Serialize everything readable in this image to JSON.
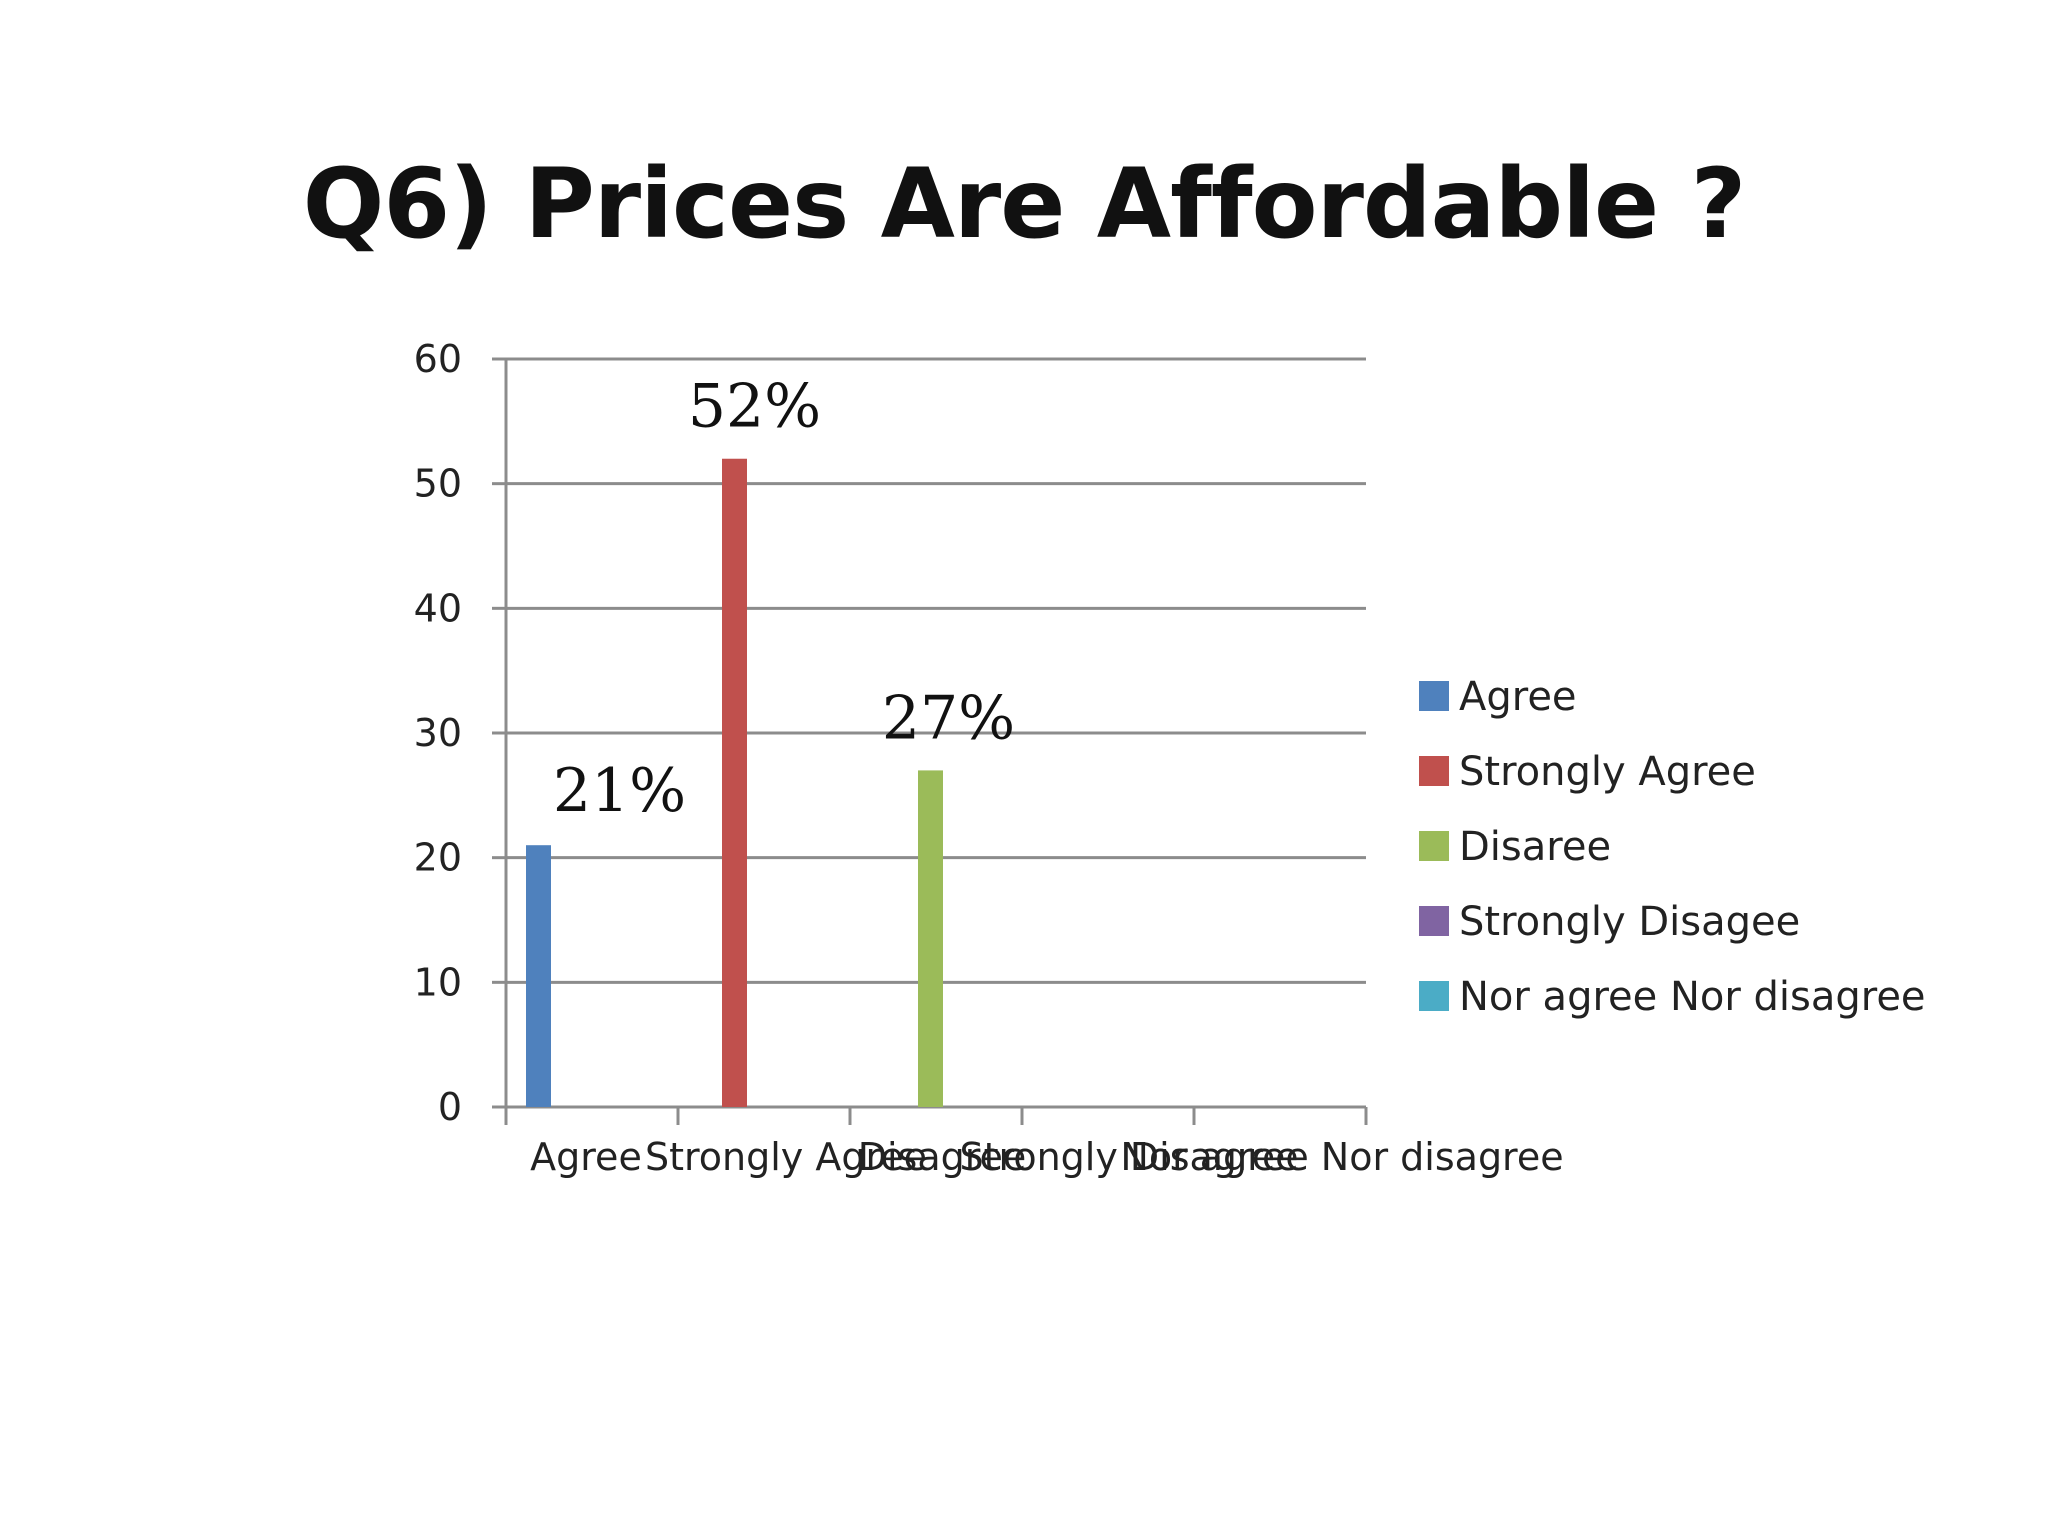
{
  "chart_data": {
    "type": "bar",
    "title": "Q6) Prices Are Affordable ?",
    "xlabel": "",
    "ylabel": "",
    "categories": [
      "Agree",
      "Strongly Agree",
      "Disagree",
      "Strongly Disagree",
      "Nor agree Nor disagree"
    ],
    "series": [
      {
        "name": "Agree",
        "color": "#4f81bd",
        "values": [
          21,
          null,
          null,
          null,
          null
        ]
      },
      {
        "name": "Strongly Agree",
        "color": "#c0504d",
        "values": [
          null,
          52,
          null,
          null,
          null
        ]
      },
      {
        "name": "Disaree",
        "color": "#9bbb59",
        "values": [
          null,
          null,
          27,
          null,
          null
        ]
      },
      {
        "name": "Strongly Disagee",
        "color": "#8064a2",
        "values": [
          null,
          null,
          null,
          null,
          null
        ]
      },
      {
        "name": "Nor agree Nor disagree",
        "color": "#4bacc6",
        "values": [
          null,
          null,
          null,
          null,
          null
        ]
      }
    ],
    "data_labels": [
      "21%",
      "52%",
      "27%"
    ],
    "ylim": [
      0,
      60
    ],
    "yticks": [
      "0",
      "10",
      "20",
      "30",
      "40",
      "50",
      "60"
    ],
    "grid": true,
    "legend_position": "right"
  }
}
